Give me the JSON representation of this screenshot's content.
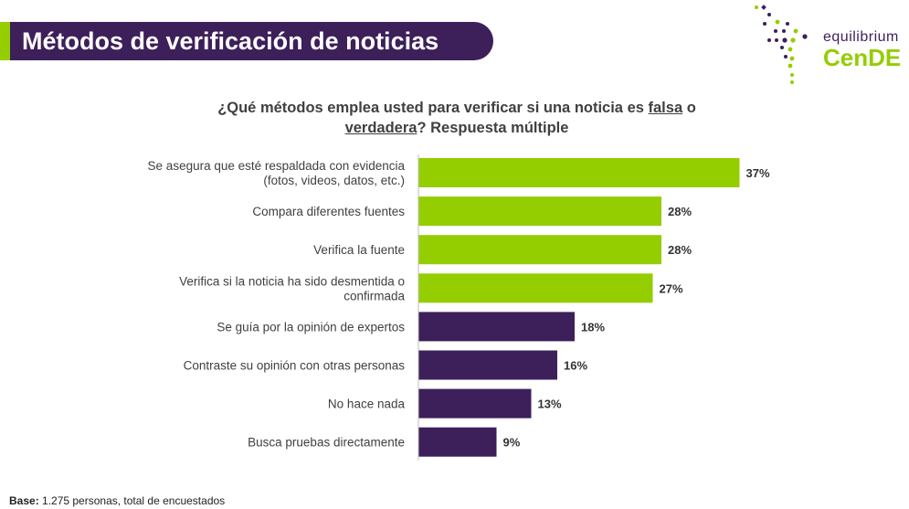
{
  "header": {
    "title": "Métodos de verificación de noticias"
  },
  "logo": {
    "subtitle": "equilibrium",
    "name": "CenDE"
  },
  "question": {
    "part1": "¿Qué métodos emplea usted para verificar si una noticia es ",
    "underline1": "falsa",
    "part2": " o ",
    "underline2": "verdadera",
    "part3": "? Respuesta múltiple"
  },
  "chart_data": {
    "type": "bar",
    "orientation": "horizontal",
    "categories": [
      [
        "Se asegura que esté respaldada con evidencia",
        "(fotos, videos, datos, etc.)"
      ],
      [
        "Compara diferentes fuentes"
      ],
      [
        "Verifica la fuente"
      ],
      [
        "Verifica si la noticia ha sido desmentida o",
        "confirmada"
      ],
      [
        "Se guía por la opinión de expertos"
      ],
      [
        "Contraste su opinión con otras personas"
      ],
      [
        "No hace nada"
      ],
      [
        "Busca pruebas directamente"
      ]
    ],
    "values": [
      37,
      28,
      28,
      27,
      18,
      16,
      13,
      9
    ],
    "value_labels": [
      "37%",
      "28%",
      "28%",
      "27%",
      "18%",
      "16%",
      "13%",
      "9%"
    ],
    "colors": [
      "#94cd00",
      "#94cd00",
      "#94cd00",
      "#94cd00",
      "#3d1f5a",
      "#3d1f5a",
      "#3d1f5a",
      "#3d1f5a"
    ],
    "xlim": [
      0,
      40
    ],
    "grid": false,
    "legend": "none"
  },
  "footer": {
    "label": "Base:",
    "text": " 1.275 personas, total de encuestados"
  }
}
